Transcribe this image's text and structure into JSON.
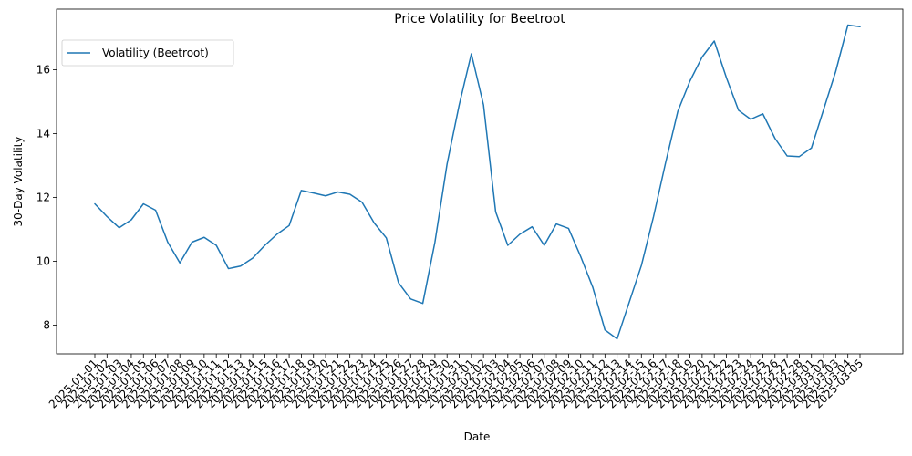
{
  "chart_data": {
    "type": "line",
    "title": "Price Volatility for Beetroot",
    "xlabel": "Date",
    "ylabel": "30-Day Volatility",
    "ylim": [
      7.1,
      17.9
    ],
    "yticks": [
      8,
      10,
      12,
      14,
      16
    ],
    "grid": false,
    "legend_position": "top-left",
    "x": [
      "2025-01-01",
      "2025-01-02",
      "2025-01-03",
      "2025-01-04",
      "2025-01-05",
      "2025-01-06",
      "2025-01-07",
      "2025-01-08",
      "2025-01-09",
      "2025-01-10",
      "2025-01-11",
      "2025-01-12",
      "2025-01-13",
      "2025-01-14",
      "2025-01-15",
      "2025-01-16",
      "2025-01-17",
      "2025-01-18",
      "2025-01-19",
      "2025-01-20",
      "2025-01-21",
      "2025-01-22",
      "2025-01-23",
      "2025-01-24",
      "2025-01-25",
      "2025-01-26",
      "2025-01-27",
      "2025-01-28",
      "2025-01-29",
      "2025-01-30",
      "2025-01-31",
      "2025-02-01",
      "2025-02-02",
      "2025-02-03",
      "2025-02-04",
      "2025-02-05",
      "2025-02-06",
      "2025-02-07",
      "2025-02-08",
      "2025-02-09",
      "2025-02-10",
      "2025-02-11",
      "2025-02-12",
      "2025-02-13",
      "2025-02-14",
      "2025-02-15",
      "2025-02-16",
      "2025-02-17",
      "2025-02-18",
      "2025-02-19",
      "2025-02-20",
      "2025-02-21",
      "2025-02-22",
      "2025-02-23",
      "2025-02-24",
      "2025-02-25",
      "2025-02-26",
      "2025-02-27",
      "2025-02-28",
      "2025-03-01",
      "2025-03-02",
      "2025-03-03",
      "2025-03-04",
      "2025-03-05"
    ],
    "series": [
      {
        "name": "Volatility (Beetroot)",
        "color": "#1f77b4",
        "values": [
          11.8,
          11.4,
          11.05,
          11.3,
          11.8,
          11.6,
          10.6,
          9.95,
          10.6,
          10.75,
          10.5,
          9.77,
          9.85,
          10.1,
          10.5,
          10.85,
          11.12,
          12.22,
          12.14,
          12.05,
          12.17,
          12.1,
          11.85,
          11.2,
          10.73,
          9.33,
          8.82,
          8.68,
          10.6,
          13.05,
          14.9,
          16.5,
          14.9,
          11.55,
          10.5,
          10.85,
          11.08,
          10.5,
          11.17,
          11.03,
          10.15,
          9.18,
          7.85,
          7.57,
          8.72,
          9.87,
          11.4,
          13.1,
          14.7,
          15.65,
          16.4,
          16.9,
          15.75,
          14.73,
          14.45,
          14.62,
          13.85,
          13.3,
          13.28,
          13.55,
          14.75,
          15.95,
          17.4,
          17.35
        ]
      }
    ]
  }
}
